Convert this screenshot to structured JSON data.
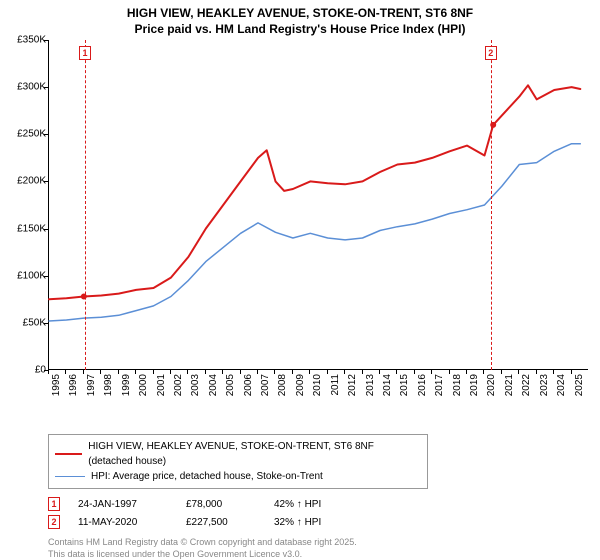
{
  "title": {
    "line1": "HIGH VIEW, HEAKLEY AVENUE, STOKE-ON-TRENT, ST6 8NF",
    "line2": "Price paid vs. HM Land Registry's House Price Index (HPI)"
  },
  "chart": {
    "type": "line",
    "background_color": "#ffffff",
    "axis_color": "#000000",
    "xlim": [
      1995,
      2026
    ],
    "ylim": [
      0,
      350000
    ],
    "ytick_step": 50000,
    "ytick_prefix": "£",
    "ytick_suffix": "K",
    "yticks": [
      {
        "value": 0,
        "label": "£0"
      },
      {
        "value": 50000,
        "label": "£50K"
      },
      {
        "value": 100000,
        "label": "£100K"
      },
      {
        "value": 150000,
        "label": "£150K"
      },
      {
        "value": 200000,
        "label": "£200K"
      },
      {
        "value": 250000,
        "label": "£250K"
      },
      {
        "value": 300000,
        "label": "£300K"
      },
      {
        "value": 350000,
        "label": "£350K"
      }
    ],
    "xticks": [
      1995,
      1996,
      1997,
      1998,
      1999,
      2000,
      2001,
      2002,
      2003,
      2004,
      2005,
      2006,
      2007,
      2008,
      2009,
      2010,
      2011,
      2012,
      2013,
      2014,
      2015,
      2016,
      2017,
      2018,
      2019,
      2020,
      2021,
      2022,
      2023,
      2024,
      2025
    ],
    "label_fontsize": 10,
    "title_fontsize": 12,
    "line_width_main": 2,
    "line_width_hpi": 1.5
  },
  "series": {
    "price_paid": {
      "label": "HIGH VIEW, HEAKLEY AVENUE, STOKE-ON-TRENT, ST6 8NF (detached house)",
      "color": "#d91a1a",
      "points": [
        [
          1995,
          75000
        ],
        [
          1996,
          76000
        ],
        [
          1997,
          78000
        ],
        [
          1998,
          79000
        ],
        [
          1999,
          81000
        ],
        [
          2000,
          85000
        ],
        [
          2001,
          87000
        ],
        [
          2002,
          98000
        ],
        [
          2003,
          120000
        ],
        [
          2004,
          150000
        ],
        [
          2005,
          175000
        ],
        [
          2006,
          200000
        ],
        [
          2007,
          225000
        ],
        [
          2007.5,
          233000
        ],
        [
          2008,
          200000
        ],
        [
          2008.5,
          190000
        ],
        [
          2009,
          192000
        ],
        [
          2010,
          200000
        ],
        [
          2011,
          198000
        ],
        [
          2012,
          197000
        ],
        [
          2013,
          200000
        ],
        [
          2014,
          210000
        ],
        [
          2015,
          218000
        ],
        [
          2016,
          220000
        ],
        [
          2017,
          225000
        ],
        [
          2018,
          232000
        ],
        [
          2019,
          238000
        ],
        [
          2020,
          227500
        ],
        [
          2020.5,
          260000
        ],
        [
          2021,
          270000
        ],
        [
          2022,
          290000
        ],
        [
          2022.5,
          302000
        ],
        [
          2023,
          287000
        ],
        [
          2024,
          297000
        ],
        [
          2025,
          300000
        ],
        [
          2025.5,
          298000
        ]
      ]
    },
    "hpi": {
      "label": "HPI: Average price, detached house, Stoke-on-Trent",
      "color": "#5b8fd6",
      "points": [
        [
          1995,
          52000
        ],
        [
          1996,
          53000
        ],
        [
          1997,
          55000
        ],
        [
          1998,
          56000
        ],
        [
          1999,
          58000
        ],
        [
          2000,
          63000
        ],
        [
          2001,
          68000
        ],
        [
          2002,
          78000
        ],
        [
          2003,
          95000
        ],
        [
          2004,
          115000
        ],
        [
          2005,
          130000
        ],
        [
          2006,
          145000
        ],
        [
          2007,
          156000
        ],
        [
          2008,
          146000
        ],
        [
          2009,
          140000
        ],
        [
          2010,
          145000
        ],
        [
          2011,
          140000
        ],
        [
          2012,
          138000
        ],
        [
          2013,
          140000
        ],
        [
          2014,
          148000
        ],
        [
          2015,
          152000
        ],
        [
          2016,
          155000
        ],
        [
          2017,
          160000
        ],
        [
          2018,
          166000
        ],
        [
          2019,
          170000
        ],
        [
          2020,
          175000
        ],
        [
          2021,
          195000
        ],
        [
          2022,
          218000
        ],
        [
          2023,
          220000
        ],
        [
          2024,
          232000
        ],
        [
          2025,
          240000
        ],
        [
          2025.5,
          240000
        ]
      ]
    }
  },
  "sales": [
    {
      "n": "1",
      "x": 1997.07,
      "date": "24-JAN-1997",
      "price": "£78,000",
      "hpi_delta": "42% ↑ HPI",
      "color": "#d91a1a"
    },
    {
      "n": "2",
      "x": 2020.36,
      "date": "11-MAY-2020",
      "price": "£227,500",
      "hpi_delta": "32% ↑ HPI",
      "color": "#d91a1a"
    }
  ],
  "footnote": {
    "line1": "Contains HM Land Registry data © Crown copyright and database right 2025.",
    "line2": "This data is licensed under the Open Government Licence v3.0."
  }
}
